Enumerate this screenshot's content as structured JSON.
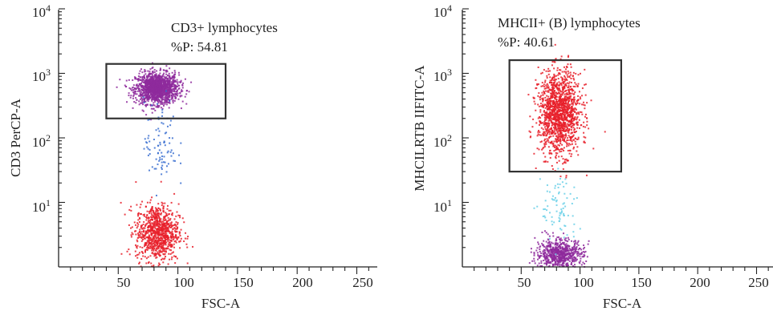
{
  "colors": {
    "purple": "#8e2a9c",
    "red": "#e8202a",
    "blue": "#3a6fd0",
    "lightblue": "#6ad0e8",
    "green": "#3aa04a",
    "gate": "#333333"
  },
  "chart_data": [
    {
      "type": "scatter",
      "xlabel": "FSC-A",
      "ylabel": "CD3 PerCP-A",
      "xlim": [
        0,
        262
      ],
      "ylim_log10": [
        0,
        4
      ],
      "x_tick_labels": [
        "50",
        "100",
        "150",
        "200",
        "250"
      ],
      "y_tick_labels": [
        {
          "base": "10",
          "exp": "1"
        },
        {
          "base": "10",
          "exp": "2"
        },
        {
          "base": "10",
          "exp": "3"
        },
        {
          "base": "10",
          "exp": "4"
        }
      ],
      "gate": {
        "name": "CD3+ lymphocytes",
        "percent_label": "%P: 54.81",
        "x": [
          40,
          140
        ],
        "y": [
          200,
          1400
        ]
      },
      "populations": [
        {
          "name": "",
          "color": "purple",
          "cx": 82,
          "cy": 600,
          "sx": 9,
          "sy_log": 0.12,
          "n": 1400
        },
        {
          "name": "",
          "color": "red",
          "cx": 82,
          "cy": 3.5,
          "sx": 9,
          "sy_log": 0.22,
          "n": 900
        },
        {
          "name": "",
          "color": "blue",
          "cx": 85,
          "cy": 80,
          "sx": 7,
          "sy_log": 0.35,
          "n": 90
        }
      ]
    },
    {
      "type": "scatter",
      "xlabel": "FSC-A",
      "ylabel": "MHCILRTB IIFITC-A",
      "xlim": [
        0,
        262
      ],
      "ylim_log10": [
        0,
        4
      ],
      "x_tick_labels": [
        "50",
        "100",
        "150",
        "200",
        "250"
      ],
      "y_tick_labels": [
        {
          "base": "10",
          "exp": "1"
        },
        {
          "base": "10",
          "exp": "2"
        },
        {
          "base": "10",
          "exp": "3"
        },
        {
          "base": "10",
          "exp": "4"
        }
      ],
      "gate": {
        "name": "MHCII+ (B) lymphocytes",
        "percent_label": "%P: 40.61",
        "x": [
          40,
          135
        ],
        "y": [
          30,
          1600
        ]
      },
      "populations": [
        {
          "name": "",
          "color": "red",
          "cx": 82,
          "cy": 250,
          "sx": 9,
          "sy_log": 0.32,
          "n": 1400
        },
        {
          "name": "",
          "color": "purple",
          "cx": 82,
          "cy": 1.6,
          "sx": 10,
          "sy_log": 0.12,
          "n": 700
        },
        {
          "name": "",
          "color": "lightblue",
          "cx": 82,
          "cy": 8,
          "sx": 8,
          "sy_log": 0.3,
          "n": 80
        }
      ]
    }
  ]
}
